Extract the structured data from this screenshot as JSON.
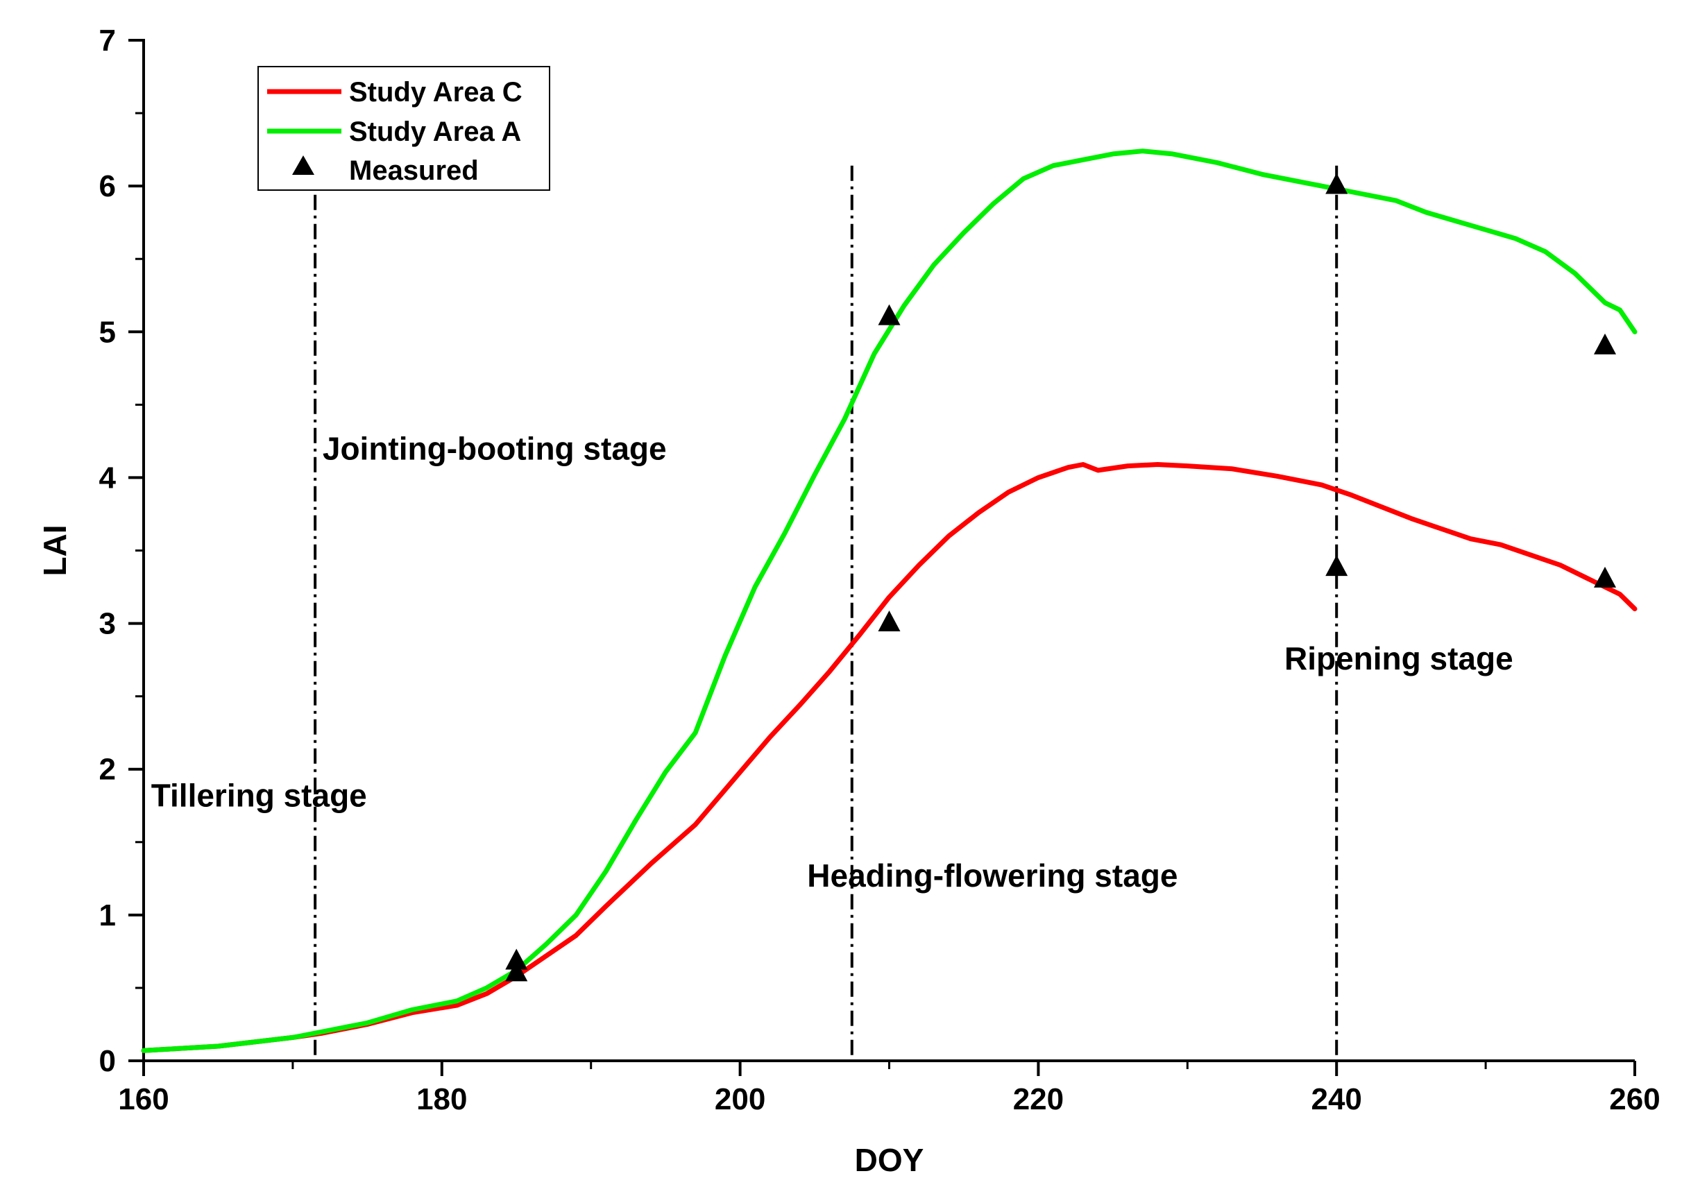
{
  "chart_data": {
    "type": "line",
    "xlabel": "DOY",
    "ylabel": "LAI",
    "xlim": [
      160,
      260
    ],
    "ylim": [
      0,
      7
    ],
    "x_ticks": [
      160,
      180,
      200,
      220,
      240,
      260
    ],
    "y_ticks": [
      0,
      1,
      2,
      3,
      4,
      5,
      6,
      7
    ],
    "grid": false,
    "legend_position": "top-left",
    "series": [
      {
        "name": "Study Area C",
        "color": "#ff0000",
        "x": [
          160,
          165,
          170,
          172,
          175,
          178,
          181,
          183,
          185,
          187,
          189,
          191,
          194,
          197,
          200,
          202,
          204,
          206,
          208,
          210,
          212,
          214,
          216,
          218,
          220,
          222,
          223,
          224,
          226,
          228,
          230,
          233,
          236,
          239,
          241,
          243,
          245,
          247,
          249,
          251,
          253,
          255,
          257,
          259,
          260
        ],
        "y": [
          0.07,
          0.1,
          0.16,
          0.19,
          0.25,
          0.33,
          0.38,
          0.46,
          0.58,
          0.72,
          0.86,
          1.06,
          1.35,
          1.62,
          1.98,
          2.22,
          2.44,
          2.67,
          2.92,
          3.18,
          3.4,
          3.6,
          3.76,
          3.9,
          4.0,
          4.07,
          4.09,
          4.05,
          4.08,
          4.09,
          4.08,
          4.06,
          4.01,
          3.95,
          3.88,
          3.8,
          3.72,
          3.65,
          3.58,
          3.54,
          3.47,
          3.4,
          3.3,
          3.2,
          3.1
        ]
      },
      {
        "name": "Study Area A",
        "color": "#00ee00",
        "x": [
          160,
          165,
          170,
          172,
          175,
          178,
          181,
          183,
          185,
          187,
          189,
          191,
          193,
          195,
          197,
          199,
          201,
          203,
          205,
          207,
          209,
          211,
          213,
          215,
          217,
          219,
          221,
          223,
          225,
          227,
          229,
          232,
          235,
          238,
          241,
          244,
          246,
          248,
          250,
          252,
          254,
          256,
          258,
          259,
          260
        ],
        "y": [
          0.07,
          0.1,
          0.16,
          0.2,
          0.26,
          0.35,
          0.41,
          0.5,
          0.62,
          0.8,
          1.0,
          1.3,
          1.65,
          1.98,
          2.25,
          2.78,
          3.25,
          3.62,
          4.02,
          4.4,
          4.85,
          5.18,
          5.46,
          5.68,
          5.88,
          6.05,
          6.14,
          6.18,
          6.22,
          6.24,
          6.22,
          6.16,
          6.08,
          6.02,
          5.96,
          5.9,
          5.82,
          5.76,
          5.7,
          5.64,
          5.55,
          5.4,
          5.2,
          5.15,
          5.0
        ]
      },
      {
        "name": "Measured",
        "color": "#000000",
        "marker": "triangle",
        "x": [
          185,
          185,
          210,
          210,
          240,
          240,
          258,
          258
        ],
        "y": [
          0.6,
          0.68,
          3.0,
          5.1,
          3.38,
          6.0,
          3.3,
          4.9
        ]
      }
    ],
    "stage_boundaries": [
      171.5,
      207.5,
      240
    ],
    "annotations": [
      {
        "text": "Tillering stage",
        "x": 160.5,
        "y": 1.82
      },
      {
        "text": "Jointing-booting stage",
        "x": 172,
        "y": 4.2
      },
      {
        "text": "Heading-flowering stage",
        "x": 204.5,
        "y": 1.27
      },
      {
        "text": "Ripening stage",
        "x": 236.5,
        "y": 2.76
      }
    ]
  }
}
